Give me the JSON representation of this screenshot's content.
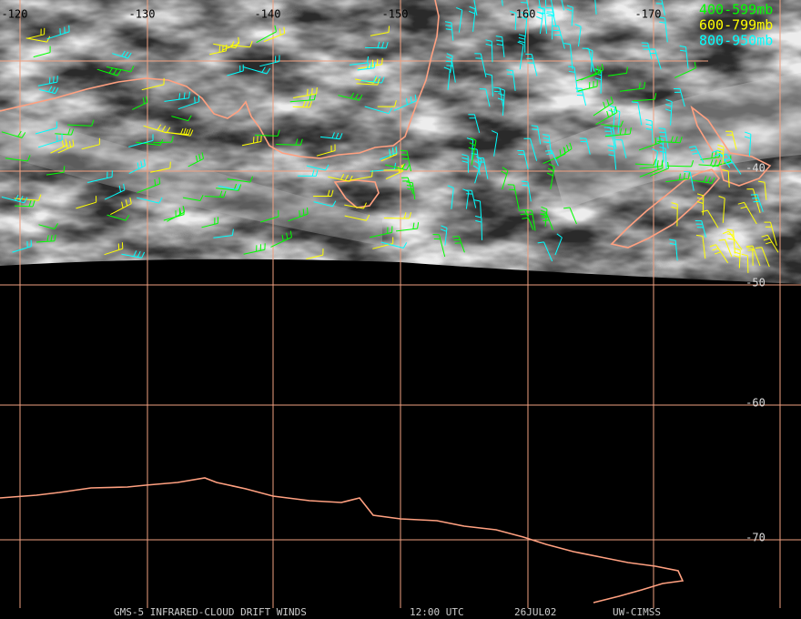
{
  "map": {
    "lon_labels": [
      "-120",
      "-130",
      "-140",
      "-150",
      "-160",
      "-170"
    ],
    "lat_labels": [
      "-40",
      "-50",
      "-60",
      "-70"
    ],
    "legend": [
      {
        "label": "400-599mb",
        "color": "#00ff00"
      },
      {
        "label": "600-799mb",
        "color": "#ffff00"
      },
      {
        "label": "800-950mb",
        "color": "#00ffff"
      }
    ],
    "footer": [
      "GMS-5 INFRARED-CLOUD DRIFT WINDS",
      "12:00 UTC",
      "26JUL02",
      "UW-CIMSS"
    ]
  }
}
